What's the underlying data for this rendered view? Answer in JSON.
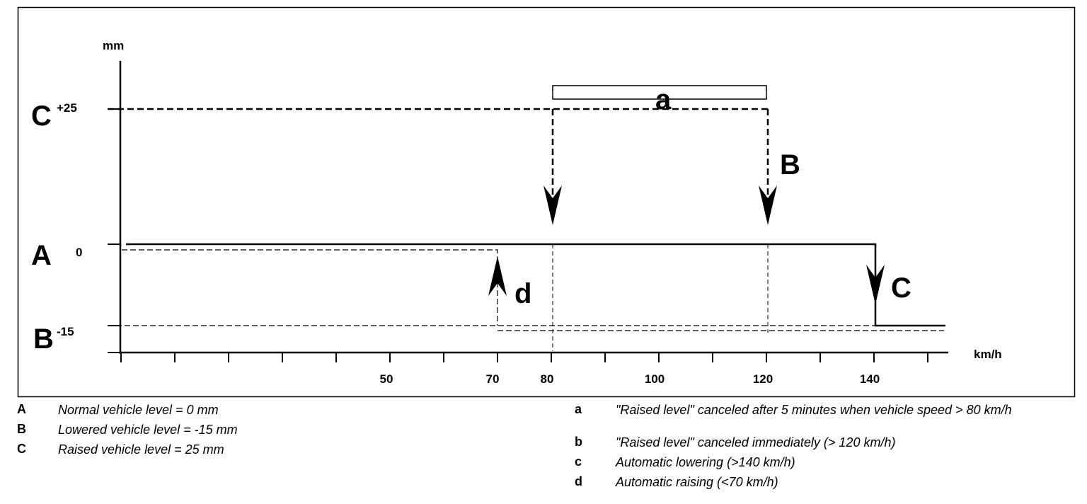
{
  "diagram": {
    "y_axis_unit": "mm",
    "x_axis_unit": "km/h",
    "levels": [
      {
        "letter": "C",
        "value": "+25"
      },
      {
        "letter": "A",
        "value": "0"
      },
      {
        "letter": "B",
        "value": "-15"
      }
    ],
    "x_ticks": [
      "50",
      "70",
      "80",
      "100",
      "120",
      "140"
    ],
    "callouts": {
      "a": "a",
      "b": "B",
      "c": "C",
      "d": "d"
    }
  },
  "legend": {
    "left": [
      {
        "key": "A",
        "text": "Normal vehicle level = 0 mm"
      },
      {
        "key": "B",
        "text": "Lowered vehicle level = -15 mm"
      },
      {
        "key": "C",
        "text": "Raised vehicle level = 25 mm"
      }
    ],
    "right": [
      {
        "key": "a",
        "text": "\"Raised level\" canceled after 5 minutes when vehicle speed > 80 km/h"
      },
      {
        "key": "b",
        "text": "\"Raised level\" canceled immediately (> 120 km/h)"
      },
      {
        "key": "c",
        "text": "Automatic lowering (>140 km/h)"
      },
      {
        "key": "d",
        "text": "Automatic raising (<70 km/h)"
      }
    ]
  }
}
